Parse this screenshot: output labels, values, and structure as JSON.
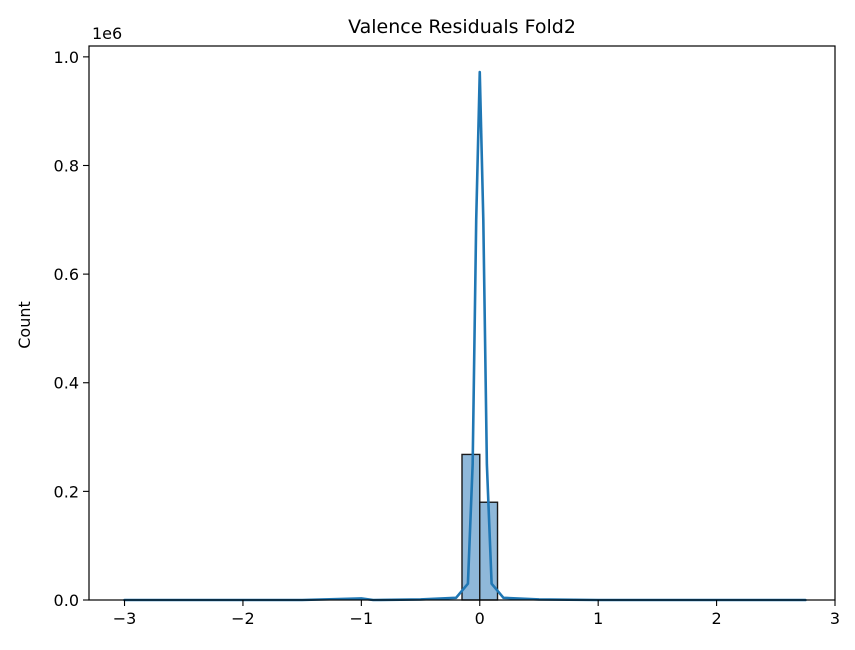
{
  "chart_data": {
    "type": "histogram",
    "title": "Valence Residuals Fold2",
    "xlabel": "",
    "ylabel": "Count",
    "y_offset_label": "1e6",
    "xlim": [
      -3.3,
      3.0
    ],
    "ylim": [
      0,
      1.02
    ],
    "x_ticks": [
      -3,
      -2,
      -1,
      0,
      1,
      2,
      3
    ],
    "x_tick_labels": [
      "−3",
      "−2",
      "−1",
      "0",
      "1",
      "2",
      "3"
    ],
    "y_ticks": [
      0.0,
      0.2,
      0.4,
      0.6,
      0.8,
      1.0
    ],
    "y_tick_labels": [
      "0.0",
      "0.2",
      "0.4",
      "0.6",
      "0.8",
      "1.0"
    ],
    "bars": [
      {
        "x0": -0.15,
        "x1": 0.0,
        "value": 0.268
      },
      {
        "x0": 0.0,
        "x1": 0.15,
        "value": 0.18
      }
    ],
    "kde": {
      "x": [
        -3.0,
        -1.5,
        -1.0,
        -0.9,
        -0.5,
        -0.2,
        -0.1,
        -0.06,
        -0.03,
        0.0,
        0.03,
        0.06,
        0.1,
        0.2,
        0.5,
        1.0,
        1.5,
        2.75
      ],
      "y": [
        0.0,
        0.0,
        0.003,
        0.0,
        0.001,
        0.004,
        0.03,
        0.25,
        0.7,
        0.972,
        0.7,
        0.25,
        0.03,
        0.004,
        0.001,
        0.0,
        0.0,
        0.0
      ]
    },
    "colors": {
      "bar_fill": "#8fb8d9",
      "bar_edge": "#1a1a1a",
      "kde_line": "#1f77b4"
    },
    "grid": false
  }
}
